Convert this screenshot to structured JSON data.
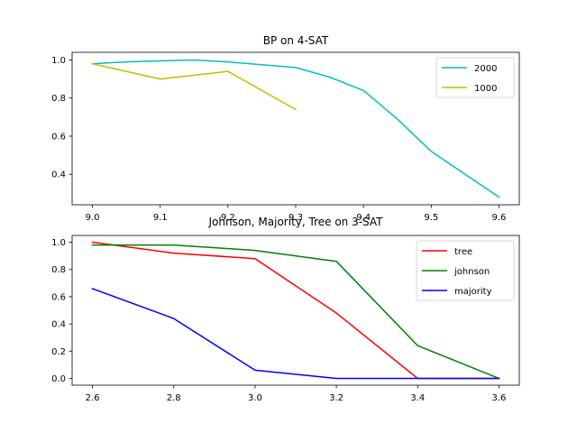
{
  "chart_data": [
    {
      "type": "line",
      "title": "BP on 4-SAT",
      "xlim": [
        8.97,
        9.63
      ],
      "ylim": [
        0.24,
        1.04
      ],
      "xticks": [
        "9.0",
        "9.1",
        "9.2",
        "9.3",
        "9.4",
        "9.5",
        "9.6"
      ],
      "yticks": [
        "0.4",
        "0.6",
        "0.8",
        "1.0"
      ],
      "legend_position": "top-right",
      "grid": false,
      "series": [
        {
          "name": "2000",
          "color": "#00bfbf",
          "x": [
            9.0,
            9.05,
            9.1,
            9.15,
            9.2,
            9.25,
            9.3,
            9.35,
            9.4,
            9.45,
            9.5,
            9.55,
            9.6
          ],
          "y": [
            0.98,
            0.99,
            0.995,
            1.0,
            0.99,
            0.975,
            0.96,
            0.91,
            0.84,
            0.69,
            0.52,
            0.4,
            0.28
          ]
        },
        {
          "name": "1000",
          "color": "#bfbf00",
          "x": [
            9.0,
            9.1,
            9.2,
            9.3
          ],
          "y": [
            0.98,
            0.9,
            0.94,
            0.74
          ]
        }
      ]
    },
    {
      "type": "line",
      "title": "Johnson, Majority, Tree on 3-SAT",
      "xlim": [
        2.55,
        3.65
      ],
      "ylim": [
        -0.05,
        1.05
      ],
      "xticks": [
        "2.6",
        "2.8",
        "3.0",
        "3.2",
        "3.4",
        "3.6"
      ],
      "yticks": [
        "0.0",
        "0.2",
        "0.4",
        "0.6",
        "0.8",
        "1.0"
      ],
      "legend_position": "top-right",
      "grid": false,
      "series": [
        {
          "name": "tree",
          "color": "#ff0000",
          "x": [
            2.6,
            2.8,
            3.0,
            3.2,
            3.4,
            3.6
          ],
          "y": [
            1.0,
            0.92,
            0.88,
            0.48,
            0.0,
            0.0
          ]
        },
        {
          "name": "johnson",
          "color": "#008000",
          "x": [
            2.6,
            2.8,
            3.0,
            3.2,
            3.4,
            3.6
          ],
          "y": [
            0.98,
            0.98,
            0.94,
            0.86,
            0.24,
            0.0
          ]
        },
        {
          "name": "majority",
          "color": "#0000ff",
          "x": [
            2.6,
            2.8,
            3.0,
            3.2,
            3.4,
            3.6
          ],
          "y": [
            0.66,
            0.44,
            0.06,
            0.0,
            0.0,
            0.0
          ]
        }
      ]
    }
  ]
}
